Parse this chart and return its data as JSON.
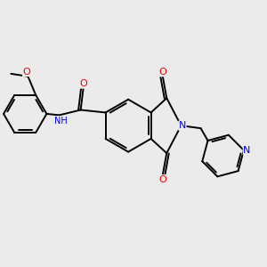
{
  "background_color": "#ebebeb",
  "bond_color": "#000000",
  "bond_width": 1.4,
  "atom_colors": {
    "N": "#0000ee",
    "O": "#ee0000",
    "C": "#000000"
  },
  "font_size": 7.0,
  "fig_size": [
    3.0,
    3.0
  ],
  "dpi": 100
}
